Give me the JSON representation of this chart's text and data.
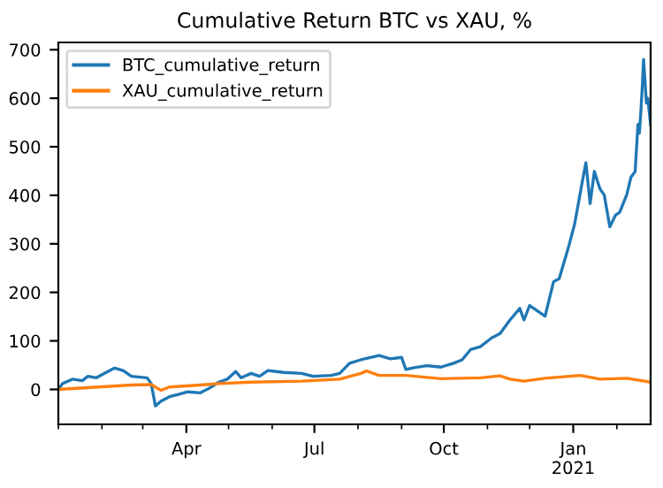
{
  "chart_data": {
    "type": "line",
    "title": "Cumulative Return BTC vs XAU, %",
    "legend": "top left",
    "grid": false,
    "xlim": [
      "2020-01-01",
      "2021-02-25"
    ],
    "ylim": [
      -72,
      715
    ],
    "yticks": [
      0,
      100,
      200,
      300,
      400,
      500,
      600,
      700
    ],
    "xticks": [
      {
        "value": "2020-01-01",
        "label": null
      },
      {
        "value": "2020-02-01",
        "label": null
      },
      {
        "value": "2020-03-01",
        "label": null
      },
      {
        "value": "2020-04-01",
        "label": "Apr"
      },
      {
        "value": "2020-05-01",
        "label": null
      },
      {
        "value": "2020-06-01",
        "label": null
      },
      {
        "value": "2020-07-01",
        "label": "Jul"
      },
      {
        "value": "2020-08-01",
        "label": null
      },
      {
        "value": "2020-09-01",
        "label": null
      },
      {
        "value": "2020-10-01",
        "label": "Oct"
      },
      {
        "value": "2020-11-01",
        "label": null
      },
      {
        "value": "2020-12-01",
        "label": null
      },
      {
        "value": "2021-01-01",
        "label": "Jan\n2021"
      },
      {
        "value": "2021-02-01",
        "label": null
      }
    ],
    "series": [
      {
        "name": "BTC_cumulative_return",
        "color": "#1f77b4",
        "x": [
          "2020-01-01",
          "2020-01-04",
          "2020-01-11",
          "2020-01-18",
          "2020-01-22",
          "2020-01-28",
          "2020-02-04",
          "2020-02-10",
          "2020-02-16",
          "2020-02-22",
          "2020-03-04",
          "2020-03-07",
          "2020-03-10",
          "2020-03-14",
          "2020-03-20",
          "2020-03-27",
          "2020-04-02",
          "2020-04-11",
          "2020-04-17",
          "2020-04-24",
          "2020-04-30",
          "2020-05-06",
          "2020-05-10",
          "2020-05-17",
          "2020-05-23",
          "2020-05-29",
          "2020-06-09",
          "2020-06-22",
          "2020-06-30",
          "2020-07-13",
          "2020-07-19",
          "2020-07-26",
          "2020-08-03",
          "2020-08-16",
          "2020-08-24",
          "2020-09-01",
          "2020-09-04",
          "2020-09-10",
          "2020-09-19",
          "2020-09-29",
          "2020-10-08",
          "2020-10-14",
          "2020-10-20",
          "2020-10-27",
          "2020-11-04",
          "2020-11-10",
          "2020-11-17",
          "2020-11-24",
          "2020-11-27",
          "2020-12-01",
          "2020-12-12",
          "2020-12-18",
          "2020-12-22",
          "2020-12-29",
          "2021-01-02",
          "2021-01-08",
          "2021-01-10",
          "2021-01-13",
          "2021-01-16",
          "2021-01-20",
          "2021-01-23",
          "2021-01-27",
          "2021-01-31",
          "2021-02-03",
          "2021-02-08",
          "2021-02-11",
          "2021-02-14",
          "2021-02-16",
          "2021-02-17",
          "2021-02-18",
          "2021-02-19",
          "2021-02-20",
          "2021-02-22",
          "2021-02-23",
          "2021-02-25"
        ],
        "values": [
          0,
          12,
          21,
          18,
          27,
          24,
          35,
          44,
          39,
          27,
          24,
          12,
          -34,
          -24,
          -15,
          -10,
          -5,
          -7,
          2,
          15,
          21,
          37,
          24,
          33,
          27,
          39,
          35,
          33,
          27,
          29,
          33,
          54,
          61,
          70,
          63,
          66,
          41,
          45,
          49,
          46,
          54,
          61,
          82,
          88,
          106,
          115,
          143,
          167,
          143,
          173,
          151,
          222,
          228,
          297,
          341,
          437,
          467,
          383,
          449,
          413,
          401,
          335,
          359,
          365,
          401,
          437,
          449,
          546,
          528,
          570,
          620,
          680,
          590,
          600,
          545
        ]
      },
      {
        "name": "XAU_cumulative_return",
        "color": "#ff7f0e",
        "x": [
          "2020-01-01",
          "2020-02-22",
          "2020-03-07",
          "2020-03-14",
          "2020-03-20",
          "2020-04-11",
          "2020-04-24",
          "2020-05-17",
          "2020-06-22",
          "2020-07-19",
          "2020-08-03",
          "2020-08-07",
          "2020-08-16",
          "2020-09-04",
          "2020-09-29",
          "2020-10-27",
          "2020-11-10",
          "2020-11-17",
          "2020-11-27",
          "2020-12-12",
          "2021-01-06",
          "2021-01-20",
          "2021-02-08",
          "2021-02-25"
        ],
        "values": [
          0,
          9,
          10,
          -2,
          5,
          9,
          12,
          15,
          17,
          21,
          33,
          38,
          29,
          29,
          22,
          24,
          28,
          21,
          17,
          23,
          29,
          21,
          23,
          15
        ]
      }
    ]
  }
}
